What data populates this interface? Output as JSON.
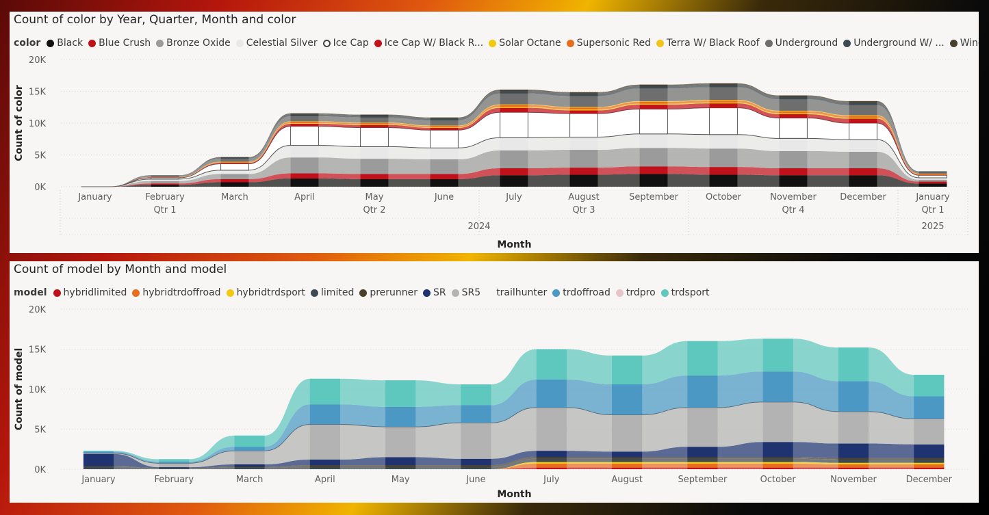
{
  "chart_data": [
    {
      "type": "area",
      "subtype": "ribbon",
      "title": "Count of color by Year, Quarter, Month and color",
      "xlabel": "Month",
      "ylabel": "Count of color",
      "ylim": [
        0,
        20000
      ],
      "yticks": [
        "20K",
        "15K",
        "10K",
        "5K",
        "0K"
      ],
      "grid": true,
      "legend_title": "color",
      "legend_position": "top-left",
      "categories": [
        "January",
        "February",
        "March",
        "April",
        "May",
        "June",
        "July",
        "August",
        "September",
        "October",
        "November",
        "December",
        "January"
      ],
      "quarters": [
        {
          "label": "Qtr 1",
          "span": 3
        },
        {
          "label": "Qtr 2",
          "span": 3
        },
        {
          "label": "Qtr 3",
          "span": 3
        },
        {
          "label": "Qtr 4",
          "span": 3
        },
        {
          "label": "Qtr 1",
          "span": 1
        }
      ],
      "years": [
        {
          "label": "2024",
          "span": 12
        },
        {
          "label": "2025",
          "span": 1
        }
      ],
      "series": [
        {
          "name": "Black",
          "color": "#111111",
          "values": [
            0,
            300,
            700,
            1300,
            1200,
            1200,
            1800,
            1900,
            2000,
            1900,
            1800,
            1800,
            500
          ]
        },
        {
          "name": "Blue Crush",
          "color": "#c0101a",
          "values": [
            0,
            200,
            500,
            800,
            800,
            800,
            1100,
            1100,
            1200,
            1200,
            1100,
            1100,
            300
          ]
        },
        {
          "name": "Bronze Oxide",
          "color": "#9b9b9b",
          "values": [
            0,
            400,
            800,
            2500,
            2400,
            2300,
            2800,
            2800,
            2900,
            2900,
            2700,
            2600,
            300
          ]
        },
        {
          "name": "Celestial Silver",
          "color": "#e8e8e8",
          "values": [
            0,
            300,
            600,
            1900,
            1900,
            1800,
            2000,
            2000,
            2200,
            2200,
            2000,
            1900,
            300
          ]
        },
        {
          "name": "Ice Cap",
          "color": "#ffffff",
          "values": [
            0,
            200,
            1000,
            3000,
            3000,
            2800,
            4000,
            3700,
            3900,
            4200,
            3200,
            2600,
            400
          ]
        },
        {
          "name": "Ice Cap W/ Black R...",
          "color": "#c3121a",
          "values": [
            0,
            50,
            150,
            400,
            400,
            350,
            700,
            500,
            700,
            700,
            600,
            700,
            100
          ]
        },
        {
          "name": "Solar Octane",
          "color": "#f2c811",
          "values": [
            0,
            20,
            50,
            100,
            100,
            100,
            150,
            150,
            150,
            150,
            150,
            150,
            50
          ]
        },
        {
          "name": "Supersonic Red",
          "color": "#e86d1f",
          "values": [
            0,
            30,
            80,
            200,
            200,
            200,
            300,
            300,
            300,
            300,
            300,
            300,
            80
          ]
        },
        {
          "name": "Terra W/ Black Roof",
          "color": "#f0c419",
          "values": [
            0,
            20,
            40,
            80,
            80,
            80,
            100,
            100,
            100,
            100,
            100,
            100,
            30
          ]
        },
        {
          "name": "Underground",
          "color": "#6e6e6e",
          "values": [
            0,
            200,
            500,
            800,
            800,
            800,
            1700,
            1700,
            2000,
            2000,
            1800,
            1600,
            200
          ]
        },
        {
          "name": "Underground W/ ...",
          "color": "#3e4a52",
          "values": [
            0,
            50,
            150,
            300,
            300,
            300,
            400,
            400,
            400,
            400,
            400,
            400,
            100
          ]
        },
        {
          "name": "Wind Chill P...",
          "color": "#4a3f2a",
          "values": [
            0,
            30,
            80,
            150,
            150,
            150,
            200,
            200,
            200,
            200,
            200,
            200,
            50
          ]
        }
      ]
    },
    {
      "type": "area",
      "subtype": "ribbon",
      "title": "Count of model by Month and model",
      "xlabel": "Month",
      "ylabel": "Count of model",
      "ylim": [
        0,
        20000
      ],
      "yticks": [
        "20K",
        "15K",
        "10K",
        "5K",
        "0K"
      ],
      "grid": true,
      "legend_title": "model",
      "legend_position": "top-left",
      "categories": [
        "January",
        "February",
        "March",
        "April",
        "May",
        "June",
        "July",
        "August",
        "September",
        "October",
        "November",
        "December"
      ],
      "series": [
        {
          "name": "hybridlimited",
          "color": "#c0101a",
          "values": [
            0,
            0,
            0,
            0,
            0,
            0,
            200,
            200,
            200,
            200,
            200,
            200
          ]
        },
        {
          "name": "hybridtrdoffroad",
          "color": "#e86d1f",
          "values": [
            0,
            0,
            0,
            0,
            0,
            0,
            500,
            500,
            500,
            500,
            400,
            400
          ]
        },
        {
          "name": "hybridtrdsport",
          "color": "#f2c811",
          "values": [
            0,
            0,
            0,
            0,
            0,
            0,
            200,
            200,
            200,
            200,
            200,
            200
          ]
        },
        {
          "name": "limited",
          "color": "#3e4a52",
          "values": [
            300,
            100,
            200,
            300,
            300,
            300,
            400,
            400,
            400,
            400,
            400,
            400
          ]
        },
        {
          "name": "prerunner",
          "color": "#4a3f2a",
          "values": [
            100,
            50,
            100,
            200,
            200,
            200,
            200,
            200,
            200,
            200,
            200,
            200
          ]
        },
        {
          "name": "SR",
          "color": "#1f3370",
          "values": [
            1500,
            100,
            300,
            700,
            1000,
            800,
            800,
            700,
            1300,
            1900,
            1800,
            1700
          ]
        },
        {
          "name": "SR5",
          "color": "#b3b3b3",
          "values": [
            100,
            500,
            1700,
            4400,
            3800,
            4500,
            5400,
            4600,
            4900,
            5000,
            4000,
            3200
          ]
        },
        {
          "name": "trailhunter",
          "color": "#ffffff",
          "values": [
            0,
            0,
            0,
            0,
            0,
            0,
            0,
            0,
            0,
            0,
            0,
            0
          ]
        },
        {
          "name": "trdoffroad",
          "color": "#4a98c3",
          "values": [
            200,
            200,
            500,
            2500,
            2500,
            2200,
            3500,
            3800,
            4000,
            3800,
            3800,
            2800
          ]
        },
        {
          "name": "trdpro",
          "color": "#e6c5c8",
          "values": [
            0,
            0,
            0,
            0,
            0,
            0,
            0,
            0,
            0,
            0,
            0,
            0
          ]
        },
        {
          "name": "trdsport",
          "color": "#5ec7be",
          "values": [
            100,
            300,
            1400,
            3200,
            3300,
            2600,
            3800,
            3600,
            4300,
            4100,
            4200,
            2700
          ]
        }
      ]
    }
  ]
}
